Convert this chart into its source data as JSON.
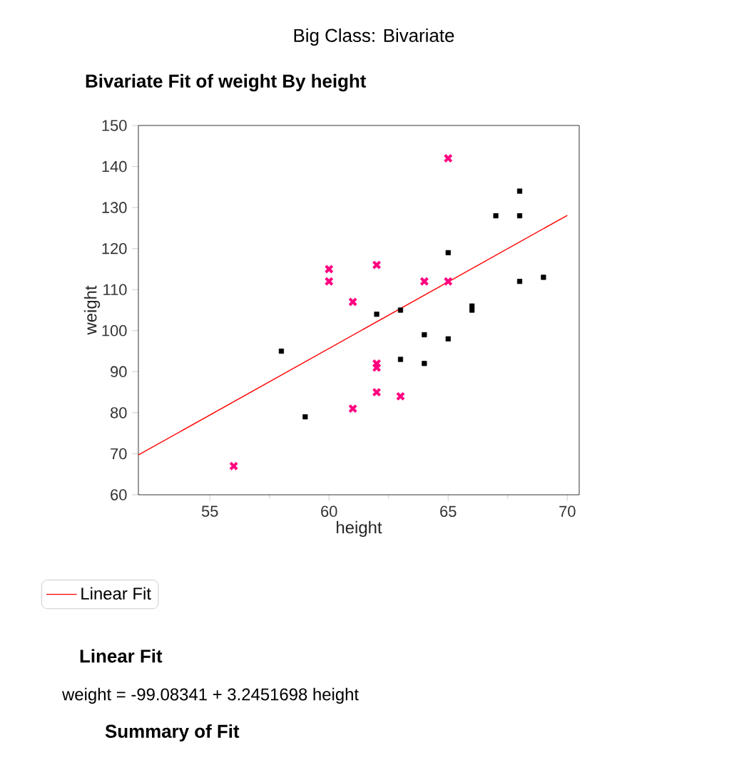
{
  "chart_data": {
    "type": "scatter",
    "title": "Bivariate Fit of weight By height",
    "xlabel": "height",
    "ylabel": "weight",
    "xlim": [
      52,
      70.5
    ],
    "ylim": [
      60,
      150
    ],
    "xticks": [
      55,
      60,
      65,
      70
    ],
    "yticks": [
      60,
      70,
      80,
      90,
      100,
      110,
      120,
      130,
      140,
      150
    ],
    "legend": "bottom",
    "grid": false,
    "series": [
      {
        "marker": "square",
        "color": "#000000",
        "x": [
          58,
          59,
          62,
          63,
          63,
          64,
          64,
          65,
          65,
          66,
          66,
          67,
          68,
          68,
          68,
          69
        ],
        "values": [
          95,
          79,
          104,
          105,
          93,
          99,
          92,
          119,
          98,
          106,
          105,
          128,
          134,
          128,
          112,
          113
        ]
      },
      {
        "marker": "cross",
        "color": "#ff0080",
        "x": [
          56,
          60,
          60,
          61,
          61,
          62,
          62,
          62,
          62,
          63,
          64,
          65,
          65
        ],
        "values": [
          67,
          115,
          112,
          107,
          81,
          116,
          92,
          91,
          85,
          84,
          112,
          112,
          142
        ]
      },
      {
        "type": "line",
        "name": "Linear Fit",
        "marker": "none",
        "color": "#ff0000",
        "x": [
          52,
          70
        ],
        "values": [
          69.7,
          128.1
        ]
      }
    ],
    "annotations": [
      "Big Class: Bivariate",
      "Linear Fit",
      "weight = -99.08341 + 3.2451698 height",
      "Summary of Fit"
    ]
  }
}
